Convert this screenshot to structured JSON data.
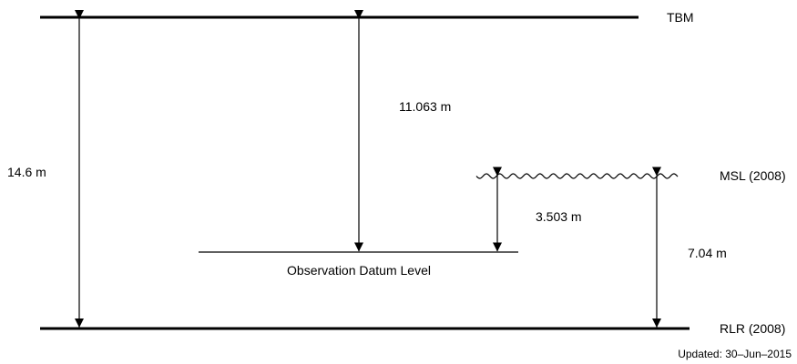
{
  "levels": {
    "tbm": "TBM",
    "msl": "MSL (2008)",
    "rlr": "RLR (2008)",
    "observation_datum": "Observation Datum Level"
  },
  "measurements": {
    "tbm_to_rlr": "14.6 m",
    "tbm_to_odl": "11.063 m",
    "msl_to_odl": "3.503 m",
    "msl_to_rlr": "7.04 m"
  },
  "footer": {
    "updated": "Updated: 30–Jun–2015"
  }
}
